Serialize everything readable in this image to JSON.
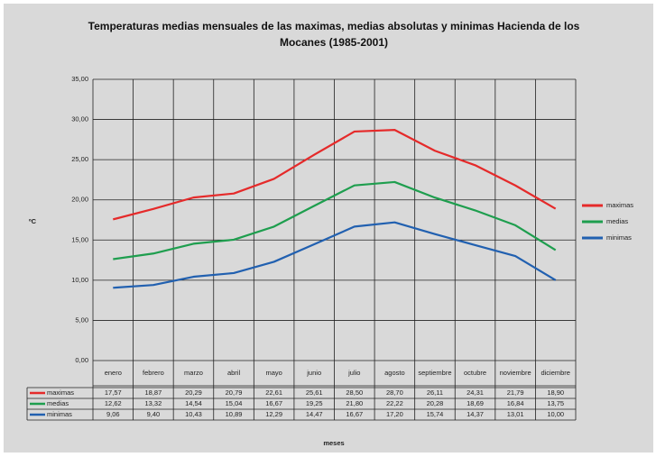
{
  "chart_data": {
    "type": "line",
    "title": "Temperaturas medias mensuales de las maximas, medias absolutas y minimas Hacienda de los Mocanes (1985-2001)",
    "x_label": "meses",
    "y_label": "ºC",
    "categories": [
      "enero",
      "febrero",
      "marzo",
      "abril",
      "mayo",
      "junio",
      "julio",
      "agosto",
      "septiembre",
      "octubre",
      "noviembre",
      "diciembre"
    ],
    "series": [
      {
        "name": "maximas",
        "color": "#e52a2a",
        "values": [
          17.57,
          18.87,
          20.29,
          20.79,
          22.61,
          25.61,
          28.5,
          28.7,
          26.11,
          24.31,
          21.79,
          18.9
        ],
        "value_labels": [
          "17,57",
          "18,87",
          "20,29",
          "20,79",
          "22,61",
          "25,61",
          "28,50",
          "28,70",
          "26,11",
          "24,31",
          "21,79",
          "18,90"
        ]
      },
      {
        "name": "medias",
        "color": "#1e9e4e",
        "values": [
          12.62,
          13.32,
          14.54,
          15.04,
          16.67,
          19.25,
          21.8,
          22.22,
          20.28,
          18.69,
          16.84,
          13.75
        ],
        "value_labels": [
          "12,62",
          "13,32",
          "14,54",
          "15,04",
          "16,67",
          "19,25",
          "21,80",
          "22,22",
          "20,28",
          "18,69",
          "16,84",
          "13,75"
        ]
      },
      {
        "name": "minimas",
        "color": "#2160b0",
        "values": [
          9.06,
          9.4,
          10.43,
          10.89,
          12.29,
          14.47,
          16.67,
          17.2,
          15.74,
          14.37,
          13.01,
          10.0
        ],
        "value_labels": [
          "9,06",
          "9,40",
          "10,43",
          "10,89",
          "12,29",
          "14,47",
          "16,67",
          "17,20",
          "15,74",
          "14,37",
          "13,01",
          "10,00"
        ]
      }
    ],
    "ylim": [
      0,
      35
    ],
    "yticks": [
      {
        "value": 0,
        "label": "0,00"
      },
      {
        "value": 5,
        "label": "5,00"
      },
      {
        "value": 10,
        "label": "10,00"
      },
      {
        "value": 15,
        "label": "15,00"
      },
      {
        "value": 20,
        "label": "20,00"
      },
      {
        "value": 25,
        "label": "25,00"
      },
      {
        "value": 30,
        "label": "30,00"
      },
      {
        "value": 35,
        "label": "35,00"
      }
    ],
    "grid": true,
    "legend": "right"
  }
}
